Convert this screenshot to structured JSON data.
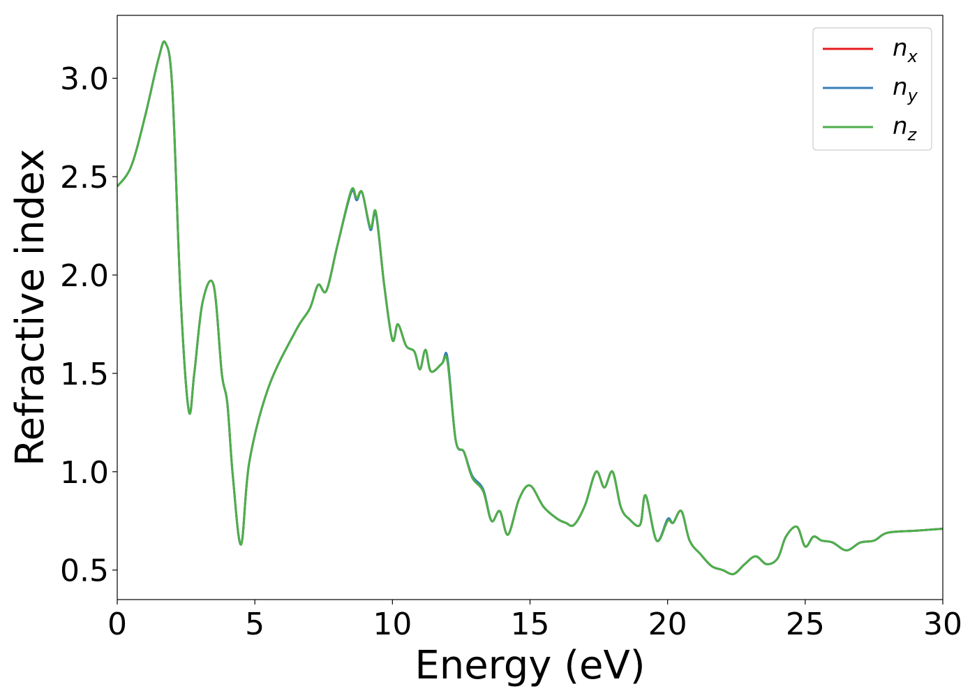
{
  "chart_data": {
    "type": "line",
    "xlabel": "Energy (eV)",
    "ylabel": "Refractive index",
    "xlim": [
      0,
      30
    ],
    "ylim": [
      0.35,
      3.32
    ],
    "xticks": [
      0,
      5,
      10,
      15,
      20,
      25,
      30
    ],
    "xtick_labels": [
      "0",
      "5",
      "10",
      "15",
      "20",
      "25",
      "30"
    ],
    "yticks": [
      0.5,
      1.0,
      1.5,
      2.0,
      2.5,
      3.0
    ],
    "ytick_labels": [
      "0.5",
      "1.0",
      "1.5",
      "2.0",
      "2.5",
      "3.0"
    ],
    "grid": false,
    "legend_position": "top-right",
    "legend": [
      {
        "base": "n",
        "sub": "x",
        "color": "#e41a1c"
      },
      {
        "base": "n",
        "sub": "y",
        "color": "#377eb8"
      },
      {
        "base": "n",
        "sub": "z",
        "color": "#4daf4a"
      }
    ],
    "x": [
      0,
      0.5,
      1.0,
      1.5,
      1.75,
      2.0,
      2.3,
      2.6,
      2.8,
      3.1,
      3.5,
      3.8,
      4.0,
      4.2,
      4.5,
      4.8,
      5.5,
      6.5,
      7.0,
      7.3,
      7.6,
      8.0,
      8.5,
      8.7,
      8.9,
      9.2,
      9.4,
      9.7,
      10.0,
      10.2,
      10.5,
      10.8,
      11.0,
      11.2,
      11.4,
      11.8,
      12.0,
      12.3,
      12.6,
      12.9,
      13.3,
      13.6,
      13.9,
      14.2,
      14.6,
      15.0,
      15.5,
      16.0,
      16.3,
      16.6,
      17.0,
      17.4,
      17.7,
      18.0,
      18.3,
      18.6,
      19.0,
      19.2,
      19.6,
      20.0,
      20.2,
      20.5,
      20.8,
      21.2,
      21.6,
      22.0,
      22.4,
      22.8,
      23.2,
      23.6,
      24.0,
      24.3,
      24.7,
      25.0,
      25.3,
      25.6,
      26.0,
      26.5,
      27.0,
      27.5,
      28.0,
      29.0,
      30.0
    ],
    "series": [
      {
        "name": "n_x",
        "color": "#e41a1c",
        "values": [
          2.45,
          2.55,
          2.8,
          3.1,
          3.18,
          2.95,
          1.9,
          1.31,
          1.5,
          1.86,
          1.95,
          1.5,
          1.35,
          0.98,
          0.63,
          1.05,
          1.43,
          1.72,
          1.83,
          1.95,
          1.92,
          2.15,
          2.42,
          2.39,
          2.42,
          2.24,
          2.31,
          1.95,
          1.67,
          1.75,
          1.64,
          1.61,
          1.52,
          1.62,
          1.51,
          1.55,
          1.57,
          1.16,
          1.1,
          0.97,
          0.9,
          0.75,
          0.8,
          0.68,
          0.86,
          0.93,
          0.82,
          0.76,
          0.74,
          0.73,
          0.83,
          1.0,
          0.92,
          1.0,
          0.82,
          0.76,
          0.73,
          0.88,
          0.65,
          0.75,
          0.74,
          0.8,
          0.65,
          0.58,
          0.52,
          0.5,
          0.48,
          0.53,
          0.57,
          0.53,
          0.56,
          0.67,
          0.72,
          0.62,
          0.67,
          0.65,
          0.64,
          0.6,
          0.64,
          0.65,
          0.69,
          0.7,
          0.71
        ]
      },
      {
        "name": "n_y",
        "color": "#377eb8",
        "values": [
          2.45,
          2.55,
          2.8,
          3.1,
          3.18,
          2.95,
          1.9,
          1.31,
          1.5,
          1.86,
          1.95,
          1.5,
          1.35,
          0.98,
          0.63,
          1.05,
          1.43,
          1.72,
          1.83,
          1.95,
          1.92,
          2.15,
          2.42,
          2.38,
          2.42,
          2.23,
          2.31,
          1.95,
          1.67,
          1.75,
          1.64,
          1.61,
          1.52,
          1.62,
          1.51,
          1.55,
          1.58,
          1.16,
          1.1,
          0.98,
          0.91,
          0.75,
          0.8,
          0.68,
          0.86,
          0.93,
          0.82,
          0.76,
          0.74,
          0.73,
          0.83,
          1.0,
          0.92,
          1.0,
          0.82,
          0.76,
          0.73,
          0.88,
          0.65,
          0.76,
          0.74,
          0.8,
          0.65,
          0.58,
          0.52,
          0.5,
          0.48,
          0.53,
          0.57,
          0.53,
          0.56,
          0.67,
          0.72,
          0.62,
          0.67,
          0.65,
          0.64,
          0.6,
          0.64,
          0.65,
          0.69,
          0.7,
          0.71
        ]
      },
      {
        "name": "n_z",
        "color": "#4daf4a",
        "values": [
          2.45,
          2.55,
          2.8,
          3.1,
          3.18,
          2.95,
          1.9,
          1.31,
          1.5,
          1.86,
          1.95,
          1.5,
          1.35,
          0.98,
          0.63,
          1.05,
          1.43,
          1.72,
          1.83,
          1.95,
          1.92,
          2.15,
          2.43,
          2.39,
          2.42,
          2.24,
          2.32,
          1.95,
          1.67,
          1.75,
          1.64,
          1.61,
          1.52,
          1.62,
          1.51,
          1.55,
          1.56,
          1.16,
          1.1,
          0.97,
          0.9,
          0.75,
          0.8,
          0.68,
          0.86,
          0.93,
          0.82,
          0.76,
          0.74,
          0.73,
          0.83,
          1.0,
          0.92,
          1.0,
          0.82,
          0.76,
          0.73,
          0.88,
          0.65,
          0.75,
          0.74,
          0.8,
          0.65,
          0.58,
          0.52,
          0.5,
          0.48,
          0.53,
          0.57,
          0.53,
          0.56,
          0.67,
          0.72,
          0.62,
          0.67,
          0.65,
          0.64,
          0.6,
          0.64,
          0.65,
          0.69,
          0.7,
          0.71
        ]
      }
    ]
  }
}
